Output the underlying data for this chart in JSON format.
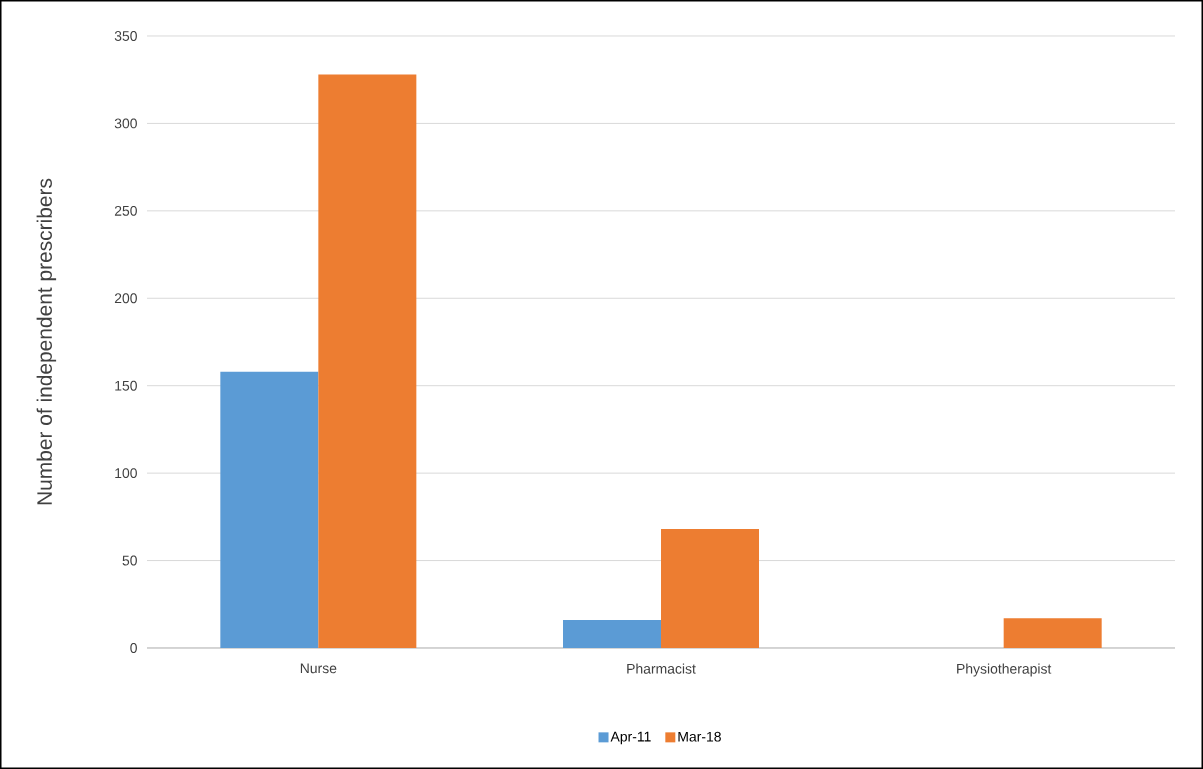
{
  "chart_data": {
    "type": "bar",
    "ylabel": "Number of independent prescribers",
    "categories": [
      "Nurse",
      "Pharmacist",
      "Physiotherapist"
    ],
    "series": [
      {
        "name": "Apr-11",
        "color": "#5b9bd5",
        "values": [
          158,
          16,
          0
        ]
      },
      {
        "name": "Mar-18",
        "color": "#ed7d31",
        "values": [
          328,
          68,
          17
        ]
      }
    ],
    "ylim": [
      0,
      350
    ],
    "yticks": [
      0,
      50,
      100,
      150,
      200,
      250,
      300,
      350
    ],
    "grid": "y",
    "legend": "bottom"
  }
}
